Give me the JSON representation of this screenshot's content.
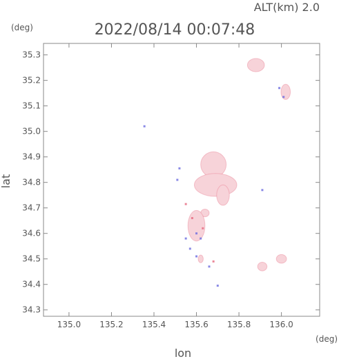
{
  "chart_data": {
    "type": "scatter",
    "title": "2022/08/14 00:07:48",
    "altitude_label": "ALT(km) 2.0",
    "xlabel": "lon",
    "ylabel": "lat",
    "x_unit": "(deg)",
    "y_unit": "(deg)",
    "xlim": [
      134.88,
      136.18
    ],
    "ylim": [
      34.275,
      35.345
    ],
    "xticks": [
      135.0,
      135.2,
      135.4,
      135.6,
      135.8,
      136.0
    ],
    "xtick_labels": [
      "135.0",
      "135.2",
      "135.4",
      "135.6",
      "135.8",
      "136.0"
    ],
    "yticks": [
      34.3,
      34.4,
      34.5,
      34.6,
      34.7,
      34.8,
      34.9,
      35.0,
      35.1,
      35.2,
      35.3
    ],
    "ytick_labels": [
      "34.3",
      "34.4",
      "34.5",
      "34.6",
      "34.7",
      "34.8",
      "34.9",
      "35.0",
      "35.1",
      "35.2",
      "35.3"
    ],
    "grid": false,
    "colors": {
      "echo_fill": "#f7d3d9",
      "echo_red": "#e66a80",
      "echo_blue": "#6c6ce0",
      "axis": "#888888",
      "text": "#555555"
    },
    "echo_areas": [
      {
        "lon": 135.88,
        "lat": 35.26,
        "rlon": 0.04,
        "rlat": 0.026
      },
      {
        "lon": 136.02,
        "lat": 35.155,
        "rlon": 0.022,
        "rlat": 0.03
      },
      {
        "lon": 135.68,
        "lat": 34.87,
        "rlon": 0.06,
        "rlat": 0.05
      },
      {
        "lon": 135.69,
        "lat": 34.79,
        "rlon": 0.1,
        "rlat": 0.045
      },
      {
        "lon": 135.725,
        "lat": 34.75,
        "rlon": 0.03,
        "rlat": 0.04
      },
      {
        "lon": 135.64,
        "lat": 34.68,
        "rlon": 0.02,
        "rlat": 0.015
      },
      {
        "lon": 135.6,
        "lat": 34.63,
        "rlon": 0.04,
        "rlat": 0.06
      },
      {
        "lon": 135.62,
        "lat": 34.5,
        "rlon": 0.012,
        "rlat": 0.015
      },
      {
        "lon": 135.91,
        "lat": 34.47,
        "rlon": 0.022,
        "rlat": 0.017
      },
      {
        "lon": 136.0,
        "lat": 34.5,
        "rlon": 0.024,
        "rlat": 0.017
      }
    ],
    "echo_spots": [
      {
        "lon": 135.355,
        "lat": 35.02,
        "c": "blue"
      },
      {
        "lon": 135.52,
        "lat": 34.855,
        "c": "blue"
      },
      {
        "lon": 135.55,
        "lat": 34.715,
        "c": "red"
      },
      {
        "lon": 135.58,
        "lat": 34.66,
        "c": "red"
      },
      {
        "lon": 135.6,
        "lat": 34.6,
        "c": "blue"
      },
      {
        "lon": 135.55,
        "lat": 34.58,
        "c": "blue"
      },
      {
        "lon": 135.63,
        "lat": 34.62,
        "c": "red"
      },
      {
        "lon": 135.62,
        "lat": 34.58,
        "c": "blue"
      },
      {
        "lon": 135.57,
        "lat": 34.54,
        "c": "blue"
      },
      {
        "lon": 135.6,
        "lat": 34.51,
        "c": "blue"
      },
      {
        "lon": 135.66,
        "lat": 34.47,
        "c": "blue"
      },
      {
        "lon": 135.68,
        "lat": 34.49,
        "c": "red"
      },
      {
        "lon": 135.7,
        "lat": 34.395,
        "c": "blue"
      },
      {
        "lon": 135.91,
        "lat": 34.77,
        "c": "blue"
      },
      {
        "lon": 135.51,
        "lat": 34.81,
        "c": "blue"
      },
      {
        "lon": 135.99,
        "lat": 35.17,
        "c": "blue"
      },
      {
        "lon": 136.01,
        "lat": 35.135,
        "c": "blue"
      }
    ]
  }
}
